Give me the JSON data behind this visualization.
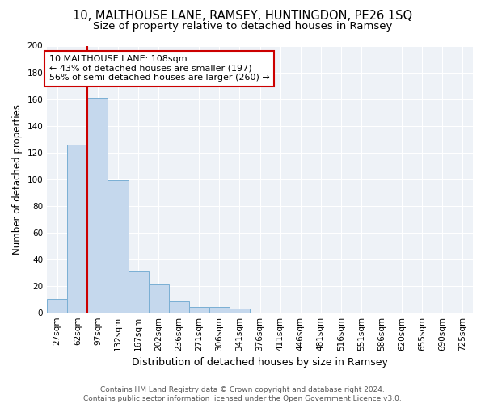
{
  "title1": "10, MALTHOUSE LANE, RAMSEY, HUNTINGDON, PE26 1SQ",
  "title2": "Size of property relative to detached houses in Ramsey",
  "xlabel": "Distribution of detached houses by size in Ramsey",
  "ylabel": "Number of detached properties",
  "categories": [
    "27sqm",
    "62sqm",
    "97sqm",
    "132sqm",
    "167sqm",
    "202sqm",
    "236sqm",
    "271sqm",
    "306sqm",
    "341sqm",
    "376sqm",
    "411sqm",
    "446sqm",
    "481sqm",
    "516sqm",
    "551sqm",
    "586sqm",
    "620sqm",
    "655sqm",
    "690sqm",
    "725sqm"
  ],
  "values": [
    10,
    126,
    161,
    99,
    31,
    21,
    8,
    4,
    4,
    3,
    0,
    0,
    0,
    0,
    0,
    0,
    0,
    0,
    0,
    0,
    0
  ],
  "bar_color": "#c5d8ed",
  "bar_edge_color": "#7aafd4",
  "vline_x_index": 2,
  "vline_color": "#cc0000",
  "annotation_line1": "10 MALTHOUSE LANE: 108sqm",
  "annotation_line2": "← 43% of detached houses are smaller (197)",
  "annotation_line3": "56% of semi-detached houses are larger (260) →",
  "annotation_box_color": "#ffffff",
  "annotation_box_edge_color": "#cc0000",
  "ylim": [
    0,
    200
  ],
  "yticks": [
    0,
    20,
    40,
    60,
    80,
    100,
    120,
    140,
    160,
    180,
    200
  ],
  "bg_color": "#eef2f7",
  "footnote": "Contains HM Land Registry data © Crown copyright and database right 2024.\nContains public sector information licensed under the Open Government Licence v3.0.",
  "title1_fontsize": 10.5,
  "title2_fontsize": 9.5,
  "xlabel_fontsize": 9,
  "ylabel_fontsize": 8.5,
  "tick_fontsize": 7.5,
  "annot_fontsize": 8,
  "footnote_fontsize": 6.5
}
